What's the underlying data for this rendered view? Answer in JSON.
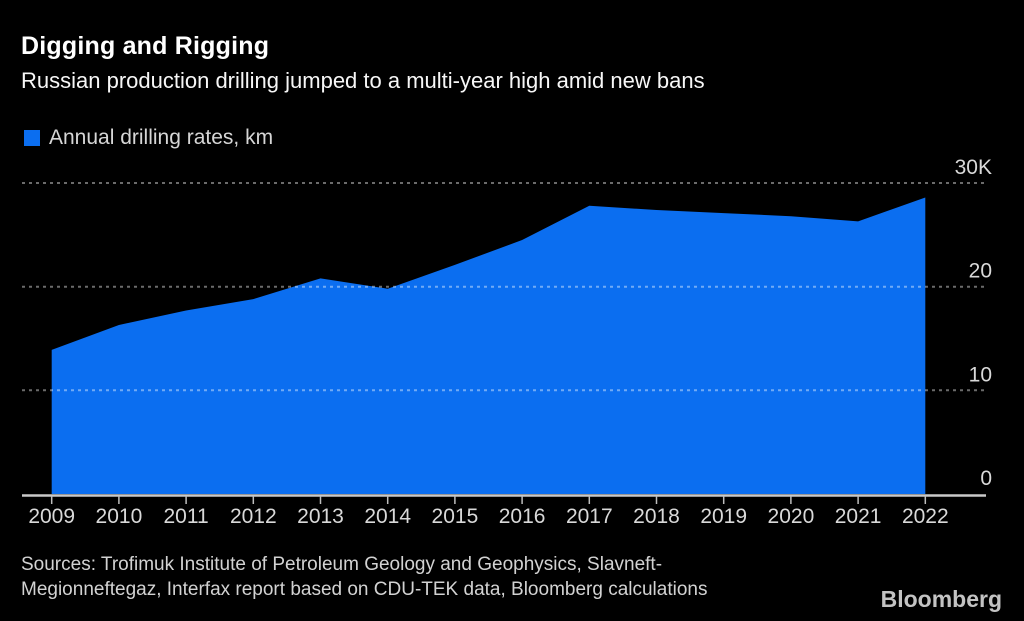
{
  "header": {
    "title": "Digging and Rigging",
    "subtitle": "Russian production drilling jumped to a multi-year high amid new bans"
  },
  "legend": {
    "label": "Annual drilling rates, km",
    "color": "#0b6ef0"
  },
  "chart_data": {
    "type": "area",
    "title": "Digging and Rigging",
    "series_name": "Annual drilling rates, km",
    "categories": [
      "2009",
      "2010",
      "2011",
      "2012",
      "2013",
      "2014",
      "2015",
      "2016",
      "2017",
      "2018",
      "2019",
      "2020",
      "2021",
      "2022"
    ],
    "values": [
      13.9,
      16.3,
      17.7,
      18.8,
      20.8,
      19.8,
      22.1,
      24.5,
      27.8,
      27.4,
      27.1,
      26.8,
      26.3,
      28.6
    ],
    "unit": "thousand km per year",
    "ylim": [
      0,
      30
    ],
    "y_ticks": [
      {
        "label": "30K",
        "value": 30
      },
      {
        "label": "20",
        "value": 20
      },
      {
        "label": "10",
        "value": 10
      },
      {
        "label": "0",
        "value": 0
      }
    ],
    "grid": "dotted-horizontal",
    "legend_position": "top-left",
    "area_color": "#0b6ef0",
    "background": "#000000"
  },
  "footer": {
    "sources_lines": [
      "Sources: Trofimuk Institute of Petroleum Geology and Geophysics, Slavneft-",
      "Megionneftegaz, Interfax report based on CDU-TEK data, Bloomberg calculations"
    ],
    "brand": "Bloomberg"
  }
}
